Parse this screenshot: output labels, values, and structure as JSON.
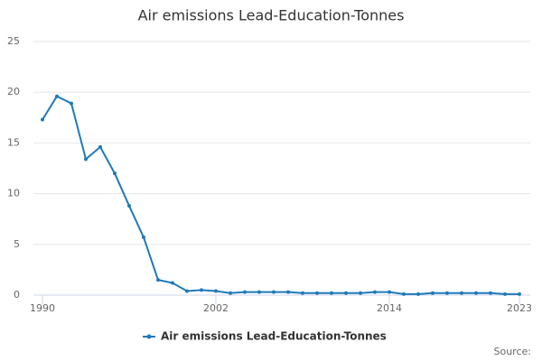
{
  "chart_data": {
    "type": "line",
    "title": "Air emissions Lead-Education-Tonnes",
    "x": [
      1990,
      1991,
      1992,
      1993,
      1994,
      1995,
      1996,
      1997,
      1998,
      1999,
      2000,
      2001,
      2002,
      2003,
      2004,
      2005,
      2006,
      2007,
      2008,
      2009,
      2010,
      2011,
      2012,
      2013,
      2014,
      2015,
      2016,
      2017,
      2018,
      2019,
      2020,
      2021,
      2022,
      2023
    ],
    "series": [
      {
        "name": "Air emissions Lead-Education-Tonnes",
        "color": "#1f7ab8",
        "values": [
          17.3,
          19.6,
          18.9,
          13.4,
          14.6,
          12.0,
          8.8,
          5.7,
          1.5,
          1.2,
          0.4,
          0.5,
          0.4,
          0.2,
          0.3,
          0.3,
          0.3,
          0.3,
          0.2,
          0.2,
          0.2,
          0.2,
          0.2,
          0.3,
          0.3,
          0.1,
          0.1,
          0.2,
          0.2,
          0.2,
          0.2,
          0.2,
          0.1,
          0.1
        ]
      }
    ],
    "xlim": [
      1990,
      2023
    ],
    "xticks": [
      1990,
      2002,
      2014,
      2023
    ],
    "ylim": [
      0,
      25
    ],
    "yticks": [
      0,
      5,
      10,
      15,
      20,
      25
    ],
    "grid": true,
    "legend": "bottom",
    "source": "Source:"
  }
}
